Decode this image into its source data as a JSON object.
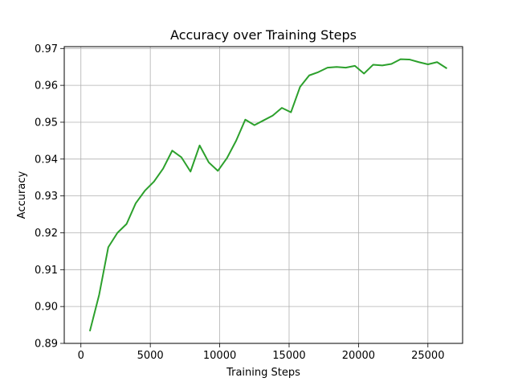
{
  "chart_data": {
    "type": "line",
    "title": "Accuracy over Training Steps",
    "xlabel": "Training Steps",
    "ylabel": "Accuracy",
    "xlim": [
      -1200,
      27500
    ],
    "ylim": [
      0.89,
      0.9705
    ],
    "xticks": [
      0,
      5000,
      10000,
      15000,
      20000,
      25000
    ],
    "xtick_labels": [
      "0",
      "5000",
      "10000",
      "15000",
      "20000",
      "25000"
    ],
    "yticks": [
      0.89,
      0.9,
      0.91,
      0.92,
      0.93,
      0.94,
      0.95,
      0.96,
      0.97
    ],
    "ytick_labels": [
      "0.89",
      "0.90",
      "0.91",
      "0.92",
      "0.93",
      "0.94",
      "0.95",
      "0.96",
      "0.97"
    ],
    "grid": true,
    "series": [
      {
        "color": "#2ca02c",
        "x": [
          658,
          1316,
          1974,
          2632,
          3290,
          3948,
          4606,
          5264,
          5922,
          6580,
          7238,
          7896,
          8554,
          9212,
          9870,
          10528,
          11186,
          11844,
          12502,
          13160,
          13818,
          14476,
          15134,
          15792,
          16450,
          17108,
          17766,
          18424,
          19082,
          19740,
          20398,
          21056,
          21714,
          22372,
          23030,
          23688,
          24346,
          25004,
          25662,
          26320
        ],
        "y": [
          0.8935,
          0.9032,
          0.9161,
          0.92,
          0.9224,
          0.928,
          0.9314,
          0.9339,
          0.9374,
          0.9423,
          0.9405,
          0.9366,
          0.9437,
          0.9391,
          0.9368,
          0.9403,
          0.945,
          0.9507,
          0.9492,
          0.9505,
          0.9518,
          0.9539,
          0.9527,
          0.9596,
          0.9627,
          0.9636,
          0.9648,
          0.965,
          0.9648,
          0.9653,
          0.9632,
          0.9656,
          0.9654,
          0.9658,
          0.9671,
          0.967,
          0.9663,
          0.9657,
          0.9663,
          0.9647
        ]
      }
    ]
  }
}
